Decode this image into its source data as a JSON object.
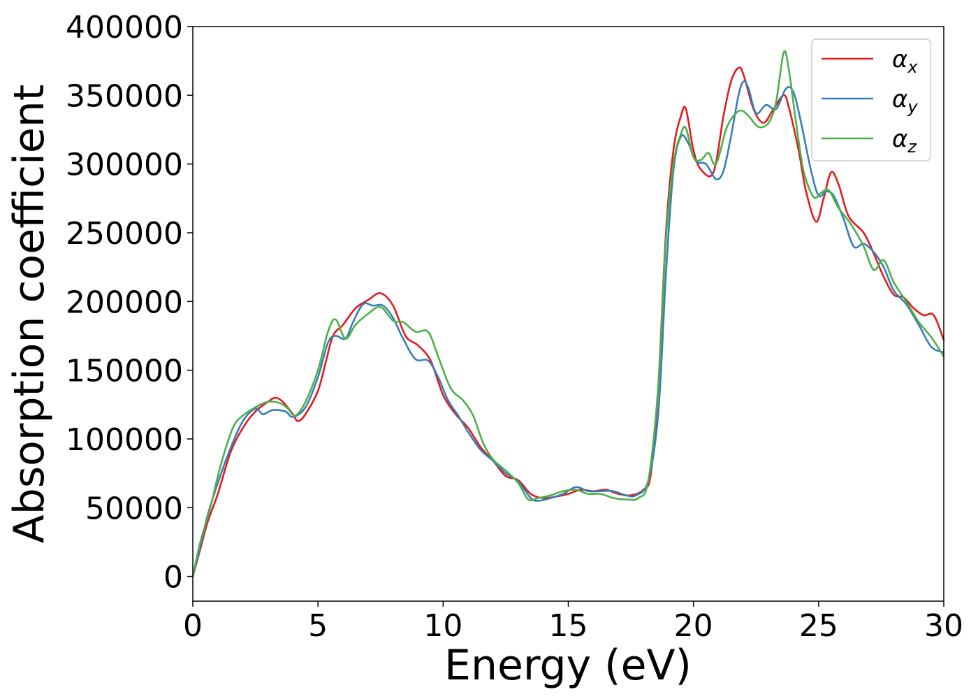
{
  "chart_data": {
    "type": "line",
    "title": "",
    "xlabel": "Energy (eV)",
    "ylabel": "Absorption coefficient",
    "xlim": [
      0,
      30
    ],
    "ylim": [
      -18000,
      400000
    ],
    "x_ticks": [
      0,
      5,
      10,
      15,
      20,
      25,
      30
    ],
    "y_ticks": [
      0,
      50000,
      100000,
      150000,
      200000,
      250000,
      300000,
      350000,
      400000
    ],
    "grid": false,
    "legend_position": "top-right",
    "series": [
      {
        "name": "αx",
        "symbol": "α",
        "subscript": "x",
        "color": "#e41a1c",
        "points": [
          [
            0,
            0
          ],
          [
            0.3,
            20000
          ],
          [
            0.6,
            40000
          ],
          [
            1.0,
            60000
          ],
          [
            1.5,
            90000
          ],
          [
            2.0,
            108000
          ],
          [
            2.5,
            120000
          ],
          [
            3.0,
            127000
          ],
          [
            3.3,
            130000
          ],
          [
            3.6,
            127000
          ],
          [
            4.0,
            118000
          ],
          [
            4.2,
            113000
          ],
          [
            4.5,
            118000
          ],
          [
            5.0,
            135000
          ],
          [
            5.3,
            155000
          ],
          [
            5.6,
            175000
          ],
          [
            6.0,
            183000
          ],
          [
            6.5,
            195000
          ],
          [
            7.0,
            201000
          ],
          [
            7.5,
            206000
          ],
          [
            8.0,
            197000
          ],
          [
            8.5,
            175000
          ],
          [
            9.0,
            168000
          ],
          [
            9.5,
            157000
          ],
          [
            10.0,
            132000
          ],
          [
            10.5,
            118000
          ],
          [
            11.0,
            108000
          ],
          [
            11.5,
            94000
          ],
          [
            12.0,
            84000
          ],
          [
            12.5,
            73000
          ],
          [
            13.0,
            70000
          ],
          [
            13.5,
            60000
          ],
          [
            14.0,
            57000
          ],
          [
            14.5,
            58000
          ],
          [
            15.0,
            60000
          ],
          [
            15.5,
            63000
          ],
          [
            16.0,
            62000
          ],
          [
            16.5,
            63000
          ],
          [
            17.0,
            60000
          ],
          [
            17.5,
            59000
          ],
          [
            18.0,
            63000
          ],
          [
            18.3,
            75000
          ],
          [
            18.6,
            140000
          ],
          [
            18.9,
            250000
          ],
          [
            19.2,
            310000
          ],
          [
            19.5,
            335000
          ],
          [
            19.7,
            340000
          ],
          [
            20.0,
            310000
          ],
          [
            20.3,
            296000
          ],
          [
            20.8,
            294000
          ],
          [
            21.2,
            335000
          ],
          [
            21.5,
            360000
          ],
          [
            21.8,
            370000
          ],
          [
            22.0,
            365000
          ],
          [
            22.4,
            340000
          ],
          [
            22.8,
            330000
          ],
          [
            23.2,
            340000
          ],
          [
            23.6,
            350000
          ],
          [
            23.8,
            342000
          ],
          [
            24.2,
            310000
          ],
          [
            24.5,
            280000
          ],
          [
            24.9,
            258000
          ],
          [
            25.2,
            275000
          ],
          [
            25.5,
            294000
          ],
          [
            25.8,
            285000
          ],
          [
            26.2,
            262000
          ],
          [
            26.8,
            250000
          ],
          [
            27.2,
            235000
          ],
          [
            27.6,
            218000
          ],
          [
            28.0,
            205000
          ],
          [
            28.4,
            203000
          ],
          [
            28.8,
            195000
          ],
          [
            29.2,
            190000
          ],
          [
            29.6,
            190000
          ],
          [
            30.0,
            172000
          ]
        ]
      },
      {
        "name": "αy",
        "symbol": "α",
        "subscript": "y",
        "color": "#377eb8",
        "points": [
          [
            0,
            0
          ],
          [
            0.3,
            22000
          ],
          [
            0.6,
            45000
          ],
          [
            1.0,
            68000
          ],
          [
            1.5,
            93000
          ],
          [
            2.0,
            113000
          ],
          [
            2.5,
            122000
          ],
          [
            2.8,
            118000
          ],
          [
            3.2,
            121000
          ],
          [
            3.7,
            120000
          ],
          [
            4.0,
            116000
          ],
          [
            4.5,
            123000
          ],
          [
            5.0,
            145000
          ],
          [
            5.4,
            170000
          ],
          [
            5.7,
            175000
          ],
          [
            6.1,
            173000
          ],
          [
            6.4,
            185000
          ],
          [
            6.8,
            198000
          ],
          [
            7.2,
            197000
          ],
          [
            7.6,
            197000
          ],
          [
            8.0,
            188000
          ],
          [
            8.4,
            173000
          ],
          [
            8.9,
            158000
          ],
          [
            9.4,
            157000
          ],
          [
            9.8,
            145000
          ],
          [
            10.2,
            128000
          ],
          [
            10.6,
            117000
          ],
          [
            11.0,
            105000
          ],
          [
            11.5,
            92000
          ],
          [
            12.0,
            84000
          ],
          [
            12.5,
            75000
          ],
          [
            13.0,
            69000
          ],
          [
            13.5,
            57000
          ],
          [
            13.8,
            55000
          ],
          [
            14.3,
            57000
          ],
          [
            14.8,
            60000
          ],
          [
            15.3,
            65000
          ],
          [
            15.8,
            62000
          ],
          [
            16.3,
            62000
          ],
          [
            16.8,
            62000
          ],
          [
            17.3,
            59000
          ],
          [
            17.7,
            59000
          ],
          [
            18.2,
            70000
          ],
          [
            18.6,
            120000
          ],
          [
            18.9,
            220000
          ],
          [
            19.2,
            295000
          ],
          [
            19.5,
            320000
          ],
          [
            19.8,
            315000
          ],
          [
            20.1,
            302000
          ],
          [
            20.5,
            300000
          ],
          [
            20.9,
            289000
          ],
          [
            21.2,
            295000
          ],
          [
            21.5,
            320000
          ],
          [
            21.8,
            350000
          ],
          [
            22.0,
            360000
          ],
          [
            22.2,
            355000
          ],
          [
            22.5,
            337000
          ],
          [
            22.9,
            343000
          ],
          [
            23.3,
            340000
          ],
          [
            23.7,
            355000
          ],
          [
            24.0,
            352000
          ],
          [
            24.3,
            330000
          ],
          [
            24.7,
            295000
          ],
          [
            25.0,
            277000
          ],
          [
            25.3,
            280000
          ],
          [
            25.6,
            277000
          ],
          [
            26.0,
            260000
          ],
          [
            26.4,
            240000
          ],
          [
            26.8,
            242000
          ],
          [
            27.2,
            236000
          ],
          [
            27.6,
            225000
          ],
          [
            28.0,
            208000
          ],
          [
            28.5,
            198000
          ],
          [
            29.0,
            183000
          ],
          [
            29.5,
            167000
          ],
          [
            30.0,
            163000
          ]
        ]
      },
      {
        "name": "αz",
        "symbol": "α",
        "subscript": "z",
        "color": "#4daf4a",
        "points": [
          [
            0,
            0
          ],
          [
            0.3,
            25000
          ],
          [
            0.7,
            50000
          ],
          [
            1.1,
            80000
          ],
          [
            1.6,
            108000
          ],
          [
            2.0,
            117000
          ],
          [
            2.5,
            123000
          ],
          [
            3.0,
            127000
          ],
          [
            3.5,
            126000
          ],
          [
            3.8,
            122000
          ],
          [
            4.1,
            117000
          ],
          [
            4.5,
            127000
          ],
          [
            5.0,
            150000
          ],
          [
            5.4,
            178000
          ],
          [
            5.7,
            187000
          ],
          [
            6.1,
            173000
          ],
          [
            6.5,
            183000
          ],
          [
            7.0,
            191000
          ],
          [
            7.5,
            196000
          ],
          [
            8.0,
            186000
          ],
          [
            8.4,
            185000
          ],
          [
            8.9,
            178000
          ],
          [
            9.4,
            178000
          ],
          [
            9.8,
            160000
          ],
          [
            10.3,
            137000
          ],
          [
            10.8,
            128000
          ],
          [
            11.2,
            117000
          ],
          [
            11.6,
            97000
          ],
          [
            12.0,
            85000
          ],
          [
            12.5,
            77000
          ],
          [
            13.0,
            68000
          ],
          [
            13.4,
            56000
          ],
          [
            13.8,
            57000
          ],
          [
            14.3,
            59000
          ],
          [
            14.8,
            62000
          ],
          [
            15.3,
            63000
          ],
          [
            15.8,
            60000
          ],
          [
            16.3,
            60000
          ],
          [
            16.8,
            57000
          ],
          [
            17.3,
            56000
          ],
          [
            17.8,
            57000
          ],
          [
            18.2,
            70000
          ],
          [
            18.6,
            140000
          ],
          [
            18.9,
            245000
          ],
          [
            19.2,
            300000
          ],
          [
            19.5,
            322000
          ],
          [
            19.7,
            326000
          ],
          [
            20.0,
            305000
          ],
          [
            20.3,
            303000
          ],
          [
            20.6,
            308000
          ],
          [
            20.9,
            300000
          ],
          [
            21.3,
            325000
          ],
          [
            21.6,
            335000
          ],
          [
            21.9,
            339000
          ],
          [
            22.2,
            335000
          ],
          [
            22.6,
            327000
          ],
          [
            23.0,
            330000
          ],
          [
            23.3,
            345000
          ],
          [
            23.6,
            381000
          ],
          [
            23.8,
            370000
          ],
          [
            24.1,
            330000
          ],
          [
            24.4,
            295000
          ],
          [
            24.8,
            276000
          ],
          [
            25.1,
            279000
          ],
          [
            25.4,
            281000
          ],
          [
            25.8,
            268000
          ],
          [
            26.3,
            256000
          ],
          [
            26.8,
            240000
          ],
          [
            27.2,
            223000
          ],
          [
            27.6,
            230000
          ],
          [
            28.0,
            214000
          ],
          [
            28.5,
            200000
          ],
          [
            29.0,
            185000
          ],
          [
            29.5,
            174000
          ],
          [
            30.0,
            160000
          ]
        ]
      }
    ]
  }
}
